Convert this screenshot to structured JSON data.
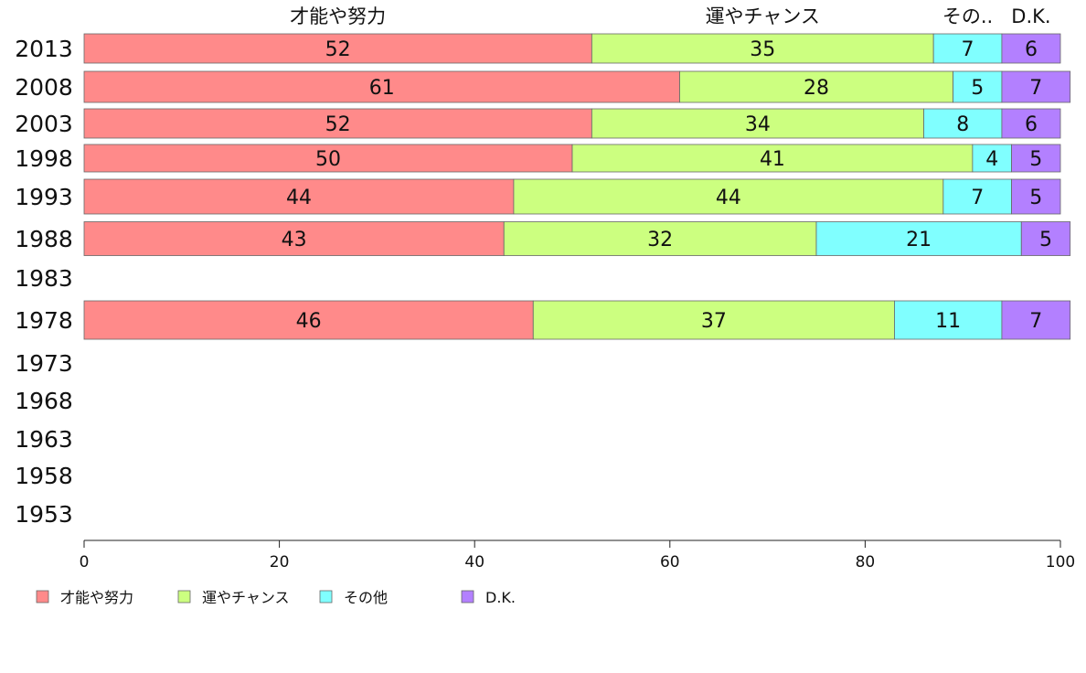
{
  "chart_data": {
    "type": "bar",
    "orientation": "horizontal",
    "stacked": true,
    "categories": [
      "2013",
      "2008",
      "2003",
      "1998",
      "1993",
      "1988",
      "1983",
      "1978",
      "1973",
      "1968",
      "1963",
      "1958",
      "1953"
    ],
    "series": [
      {
        "name": "才能や努力",
        "color": "#ff8a8a",
        "values": [
          52,
          61,
          52,
          50,
          44,
          43,
          null,
          46,
          null,
          null,
          null,
          null,
          null
        ]
      },
      {
        "name": "運やチャンス",
        "color": "#ccff80",
        "values": [
          35,
          28,
          34,
          41,
          44,
          32,
          null,
          37,
          null,
          null,
          null,
          null,
          null
        ]
      },
      {
        "name": "その他",
        "color": "#80ffff",
        "values": [
          7,
          5,
          8,
          4,
          7,
          21,
          null,
          11,
          null,
          null,
          null,
          null,
          null
        ]
      },
      {
        "name": "D.K.",
        "color": "#b380ff",
        "values": [
          6,
          7,
          6,
          5,
          5,
          5,
          null,
          7,
          null,
          null,
          null,
          null,
          null
        ]
      }
    ],
    "top_labels": [
      "才能や努力",
      "運やチャンス",
      "その..",
      "D.K."
    ],
    "xlim": [
      0,
      100
    ],
    "xticks": [
      0,
      20,
      40,
      60,
      80,
      100
    ],
    "grid": false,
    "legend_position": "bottom-left"
  }
}
